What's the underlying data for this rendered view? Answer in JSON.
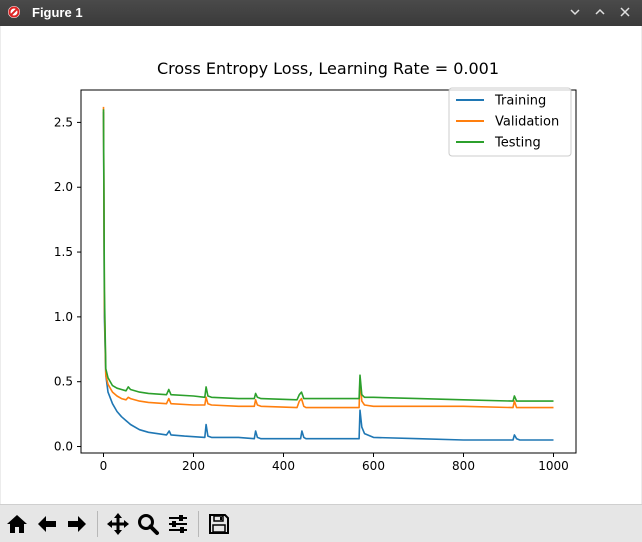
{
  "window": {
    "title": "Figure 1"
  },
  "toolbar": {
    "buttons": [
      {
        "icon": "home-icon"
      },
      {
        "icon": "back-arrow-icon"
      },
      {
        "icon": "forward-arrow-icon"
      },
      {
        "icon": "pan-move-icon"
      },
      {
        "icon": "zoom-magnifier-icon"
      },
      {
        "icon": "configure-subplots-icon"
      },
      {
        "icon": "save-floppy-icon"
      }
    ]
  },
  "chart_data": {
    "type": "line",
    "title": "Cross Entropy Loss, Learning Rate = 0.001",
    "xlabel": "",
    "ylabel": "",
    "xlim": [
      -50,
      1050
    ],
    "ylim": [
      -0.05,
      2.75
    ],
    "xticks": [
      0,
      200,
      400,
      600,
      800,
      1000
    ],
    "yticks": [
      0.0,
      0.5,
      1.0,
      1.5,
      2.0,
      2.5
    ],
    "xtick_labels": [
      "0",
      "200",
      "400",
      "600",
      "800",
      "1000"
    ],
    "ytick_labels": [
      "0.0",
      "0.5",
      "1.0",
      "1.5",
      "2.0",
      "2.5"
    ],
    "legend_position": "top-right",
    "grid": false,
    "series": [
      {
        "name": "Training",
        "color": "#1f77b4",
        "x": [
          0,
          2,
          5,
          10,
          20,
          30,
          40,
          50,
          60,
          80,
          100,
          140,
          146,
          150,
          180,
          225,
          228,
          232,
          240,
          300,
          335,
          338,
          342,
          350,
          420,
          438,
          441,
          445,
          450,
          500,
          568,
          570,
          574,
          580,
          600,
          700,
          800,
          910,
          913,
          918,
          925,
          1000
        ],
        "values": [
          2.58,
          1.0,
          0.55,
          0.42,
          0.33,
          0.27,
          0.23,
          0.2,
          0.17,
          0.13,
          0.11,
          0.09,
          0.12,
          0.09,
          0.08,
          0.07,
          0.17,
          0.08,
          0.07,
          0.07,
          0.06,
          0.12,
          0.07,
          0.06,
          0.06,
          0.06,
          0.12,
          0.07,
          0.06,
          0.06,
          0.06,
          0.28,
          0.15,
          0.1,
          0.07,
          0.06,
          0.05,
          0.05,
          0.09,
          0.06,
          0.05,
          0.05
        ]
      },
      {
        "name": "Validation",
        "color": "#ff7f0e",
        "x": [
          0,
          2,
          5,
          10,
          20,
          30,
          40,
          50,
          55,
          60,
          80,
          100,
          140,
          145,
          150,
          200,
          225,
          228,
          232,
          240,
          300,
          335,
          338,
          342,
          350,
          430,
          435,
          440,
          445,
          450,
          500,
          568,
          570,
          574,
          580,
          600,
          700,
          800,
          910,
          913,
          918,
          1000
        ],
        "values": [
          2.62,
          1.1,
          0.55,
          0.48,
          0.42,
          0.39,
          0.37,
          0.36,
          0.38,
          0.37,
          0.35,
          0.34,
          0.33,
          0.37,
          0.33,
          0.32,
          0.32,
          0.38,
          0.33,
          0.32,
          0.31,
          0.31,
          0.36,
          0.32,
          0.31,
          0.3,
          0.35,
          0.37,
          0.31,
          0.3,
          0.3,
          0.3,
          0.52,
          0.35,
          0.32,
          0.31,
          0.31,
          0.31,
          0.3,
          0.35,
          0.3,
          0.3
        ]
      },
      {
        "name": "Testing",
        "color": "#2ca02c",
        "x": [
          0,
          2,
          5,
          10,
          20,
          30,
          40,
          50,
          55,
          60,
          80,
          100,
          140,
          145,
          150,
          200,
          225,
          228,
          232,
          240,
          300,
          335,
          338,
          342,
          350,
          430,
          435,
          440,
          445,
          450,
          500,
          568,
          570,
          574,
          580,
          600,
          700,
          800,
          910,
          913,
          918,
          1000
        ],
        "values": [
          2.6,
          1.2,
          0.6,
          0.53,
          0.47,
          0.45,
          0.44,
          0.43,
          0.46,
          0.44,
          0.42,
          0.41,
          0.4,
          0.44,
          0.4,
          0.39,
          0.38,
          0.46,
          0.39,
          0.38,
          0.37,
          0.37,
          0.41,
          0.38,
          0.37,
          0.36,
          0.4,
          0.42,
          0.37,
          0.37,
          0.37,
          0.37,
          0.55,
          0.4,
          0.38,
          0.38,
          0.37,
          0.36,
          0.35,
          0.39,
          0.35,
          0.35
        ]
      }
    ]
  }
}
